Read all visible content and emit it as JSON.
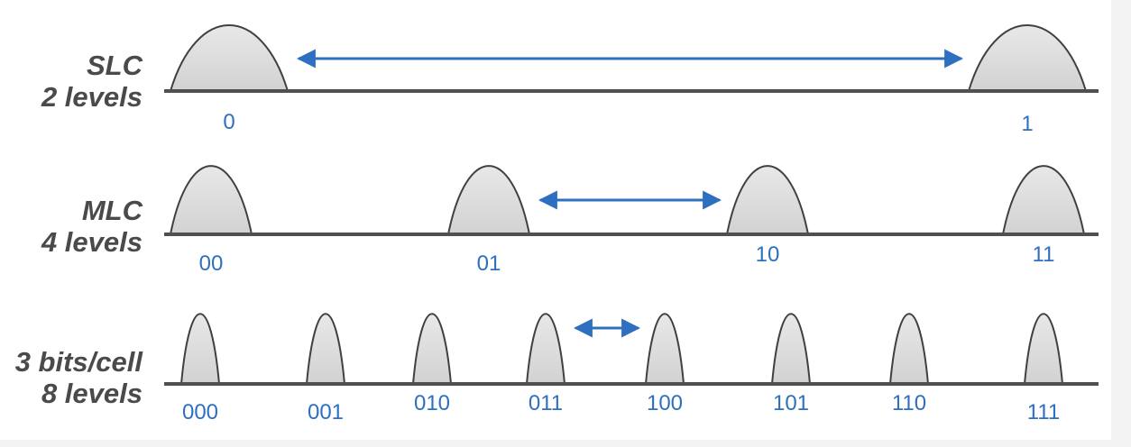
{
  "colors": {
    "background": "#f3f3f3",
    "panel": "#ffffff",
    "axis": "#505050",
    "curve_fill": "#dcdcdc",
    "curve_stroke": "#404040",
    "arrow": "#2e6fc0",
    "level_label": "#2e6fc0",
    "row_label": "#4a4a4a"
  },
  "rows": [
    {
      "id": "slc",
      "title": "SLC",
      "subtitle": "2 levels",
      "levels": [
        "0",
        "1"
      ],
      "arrow_between": [
        0,
        1
      ]
    },
    {
      "id": "mlc",
      "title": "MLC",
      "subtitle": "4 levels",
      "levels": [
        "00",
        "01",
        "10",
        "11"
      ],
      "arrow_between": [
        1,
        2
      ]
    },
    {
      "id": "tlc",
      "title": "3 bits/cell",
      "subtitle": "8 levels",
      "levels": [
        "000",
        "001",
        "010",
        "011",
        "100",
        "101",
        "110",
        "111"
      ],
      "arrow_between": [
        3,
        4
      ]
    }
  ]
}
